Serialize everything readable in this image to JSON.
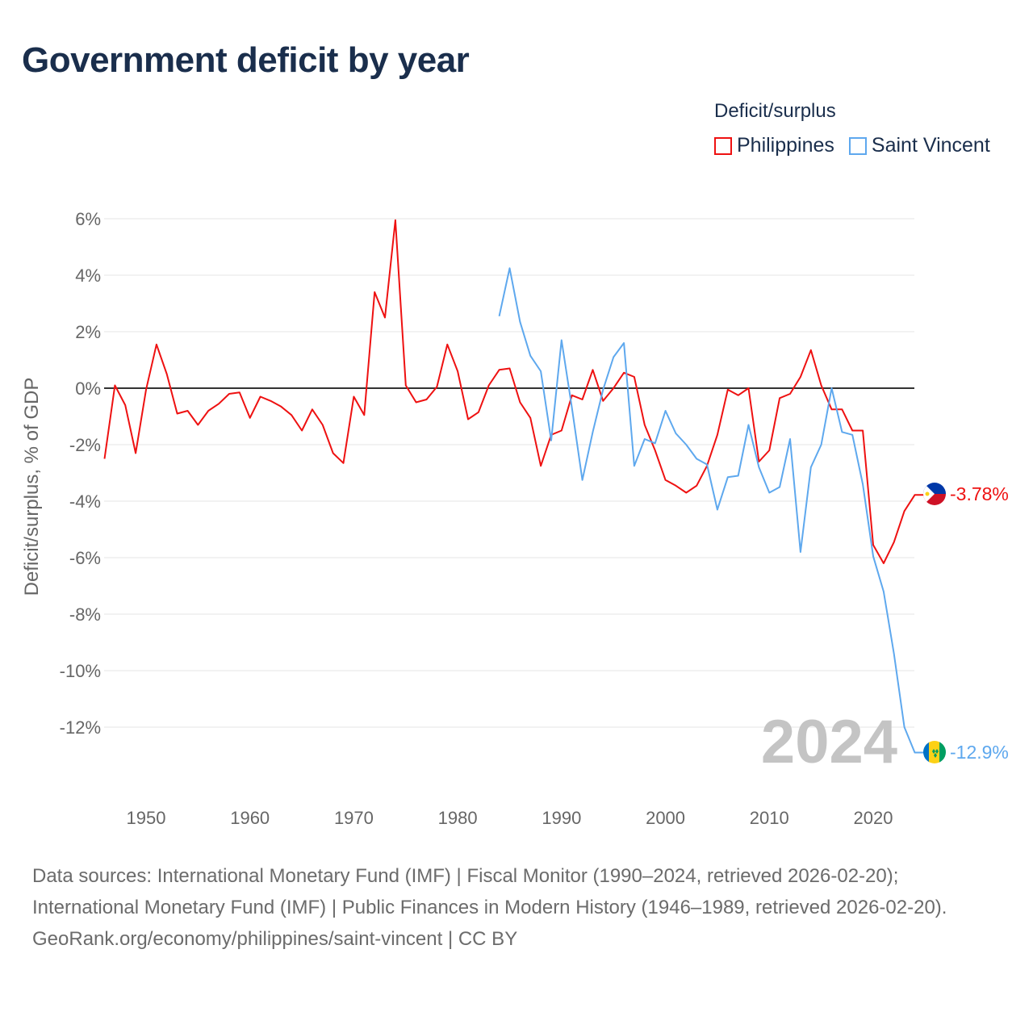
{
  "title": "Government deficit by year",
  "legend": {
    "title": "Deficit/surplus",
    "items": [
      {
        "label": "Philippines",
        "color": "#ee1111"
      },
      {
        "label": "Saint Vincent",
        "color": "#5ea8ee"
      }
    ]
  },
  "footer": {
    "sources": "Data sources: International Monetary Fund (IMF) | Fiscal Monitor (1990–2024, retrieved 2026-02-20); International Monetary Fund (IMF) | Public Finances in Modern History (1946–1989, retrieved 2026-02-20).",
    "credit": "GeoRank.org/economy/philippines/saint-vincent | CC BY"
  },
  "chart_data": {
    "type": "line",
    "title": "Government deficit by year",
    "ylabel": "Deficit/surplus, % of GDP",
    "xlabel": "",
    "xlim": [
      1946,
      2024
    ],
    "ylim": [
      -14,
      6.6
    ],
    "x_ticks": [
      "1950",
      "1960",
      "1970",
      "1980",
      "1990",
      "2000",
      "2010",
      "2020"
    ],
    "y_ticks": [
      "6%",
      "4%",
      "2%",
      "0%",
      "-2%",
      "-4%",
      "-6%",
      "-8%",
      "-10%",
      "-12%"
    ],
    "y_tick_values": [
      6,
      4,
      2,
      0,
      -2,
      -4,
      -6,
      -8,
      -10,
      -12
    ],
    "x_tick_values": [
      1950,
      1960,
      1970,
      1980,
      1990,
      2000,
      2010,
      2020
    ],
    "year_watermark": "2024",
    "grid": true,
    "legend_position": "top-right",
    "series": [
      {
        "name": "Philippines",
        "color": "#ee1111",
        "start_year": 1946,
        "end_label": "-3.78%",
        "values": [
          -2.5,
          0.1,
          -0.6,
          -2.3,
          -0.05,
          1.55,
          0.5,
          -0.9,
          -0.8,
          -1.3,
          -0.8,
          -0.55,
          -0.2,
          -0.15,
          -1.05,
          -0.3,
          -0.45,
          -0.65,
          -0.95,
          -1.5,
          -0.75,
          -1.3,
          -2.3,
          -2.65,
          -0.3,
          -0.95,
          3.4,
          2.5,
          5.95,
          0.1,
          -0.5,
          -0.4,
          0.05,
          1.55,
          0.6,
          -1.1,
          -0.85,
          0.1,
          0.65,
          0.7,
          -0.5,
          -1.05,
          -2.75,
          -1.65,
          -1.5,
          -0.25,
          -0.4,
          0.65,
          -0.45,
          0,
          0.55,
          0.4,
          -1.3,
          -2.2,
          -3.25,
          -3.45,
          -3.7,
          -3.45,
          -2.75,
          -1.65,
          -0.05,
          -0.25,
          0,
          -2.6,
          -2.2,
          -0.35,
          -0.2,
          0.4,
          1.35,
          0.1,
          -0.75,
          -0.75,
          -1.5,
          -1.5,
          -5.55,
          -6.2,
          -5.45,
          -4.35,
          -3.78
        ]
      },
      {
        "name": "Saint Vincent",
        "color": "#5ea8ee",
        "start_year": 1984,
        "end_label": "-12.9%",
        "values": [
          2.55,
          4.25,
          2.35,
          1.15,
          0.6,
          -1.85,
          1.7,
          -0.7,
          -3.25,
          -1.55,
          -0.05,
          1.1,
          1.6,
          -2.75,
          -1.8,
          -1.95,
          -0.8,
          -1.6,
          -2.0,
          -2.5,
          -2.7,
          -4.3,
          -3.15,
          -3.1,
          -1.3,
          -2.8,
          -3.7,
          -3.5,
          -1.8,
          -5.8,
          -2.8,
          -2.0,
          0,
          -1.55,
          -1.65,
          -3.4,
          -5.95,
          -7.2,
          -9.4,
          -12.0,
          -12.9
        ]
      }
    ]
  }
}
